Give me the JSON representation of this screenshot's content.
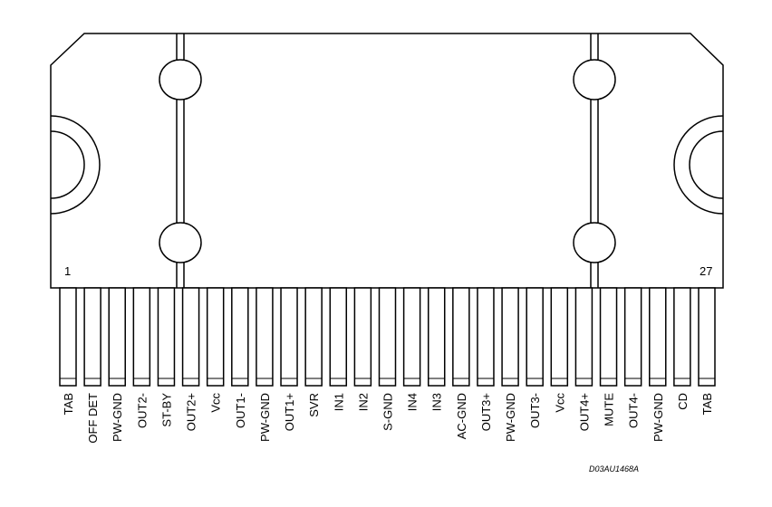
{
  "pin_numbers": {
    "first": "1",
    "last": "27"
  },
  "pins": [
    {
      "label": "TAB"
    },
    {
      "label": "OFF DET"
    },
    {
      "label": "PW-GND"
    },
    {
      "label": "OUT2-"
    },
    {
      "label": "ST-BY"
    },
    {
      "label": "OUT2+"
    },
    {
      "label": "Vcc"
    },
    {
      "label": "OUT1-"
    },
    {
      "label": "PW-GND"
    },
    {
      "label": "OUT1+"
    },
    {
      "label": "SVR"
    },
    {
      "label": "IN1"
    },
    {
      "label": "IN2"
    },
    {
      "label": "S-GND"
    },
    {
      "label": "IN4"
    },
    {
      "label": "IN3"
    },
    {
      "label": "AC-GND"
    },
    {
      "label": "OUT3+"
    },
    {
      "label": "PW-GND"
    },
    {
      "label": "OUT3-"
    },
    {
      "label": "Vcc"
    },
    {
      "label": "OUT4+"
    },
    {
      "label": "MUTE"
    },
    {
      "label": "OUT4-"
    },
    {
      "label": "PW-GND"
    },
    {
      "label": "CD"
    },
    {
      "label": "TAB"
    }
  ],
  "drawing_code": "D03AU1468A"
}
